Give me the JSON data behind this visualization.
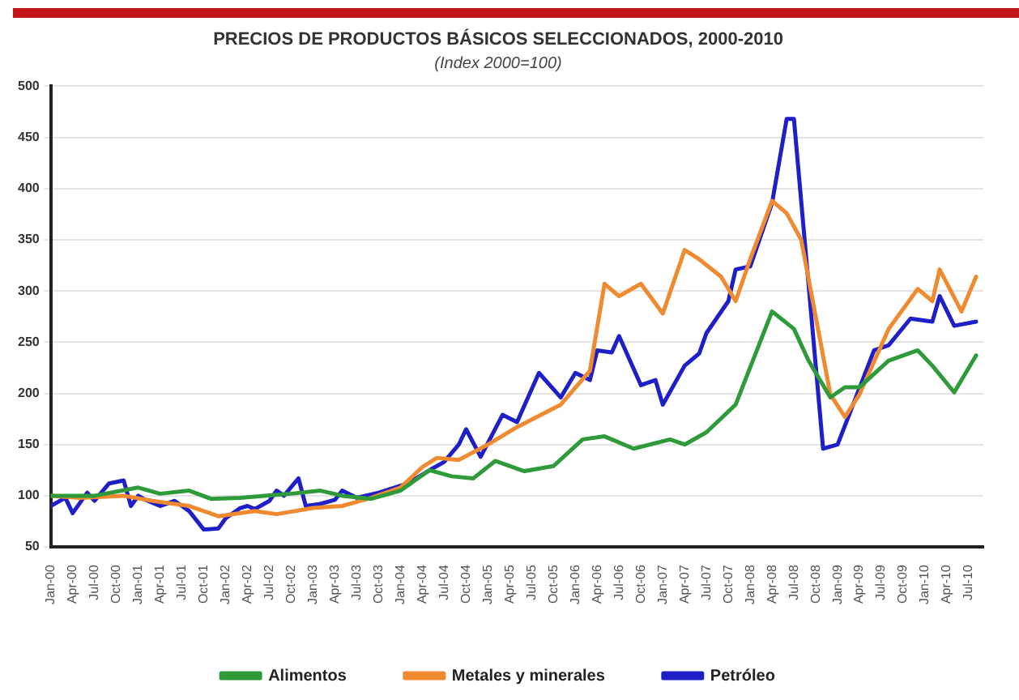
{
  "chart_data": {
    "type": "line",
    "title": "PRECIOS DE PRODUCTOS BÁSICOS SELECCIONADOS, 2000-2010",
    "subtitle": "(Index 2000=100)",
    "xlim": [
      "2000-01",
      "2010-09"
    ],
    "xticks": [
      {
        "value": "2000-01",
        "label": "Jan-00"
      },
      {
        "value": "2000-04",
        "label": "Apr-00"
      },
      {
        "value": "2000-07",
        "label": "Jul-00"
      },
      {
        "value": "2000-10",
        "label": "Oct-00"
      },
      {
        "value": "2001-01",
        "label": "Jan-01"
      },
      {
        "value": "2001-04",
        "label": "Apr-01"
      },
      {
        "value": "2001-07",
        "label": "Jul-01"
      },
      {
        "value": "2001-10",
        "label": "Oct-01"
      },
      {
        "value": "2002-01",
        "label": "Jan-02"
      },
      {
        "value": "2002-04",
        "label": "Apr-02"
      },
      {
        "value": "2002-07",
        "label": "Jul-02"
      },
      {
        "value": "2002-10",
        "label": "Oct-02"
      },
      {
        "value": "2003-01",
        "label": "Jan-03"
      },
      {
        "value": "2003-04",
        "label": "Apr-03"
      },
      {
        "value": "2003-07",
        "label": "Jul-03"
      },
      {
        "value": "2003-10",
        "label": "Oct-03"
      },
      {
        "value": "2004-01",
        "label": "Jan-04"
      },
      {
        "value": "2004-04",
        "label": "Apr-04"
      },
      {
        "value": "2004-07",
        "label": "Jul-04"
      },
      {
        "value": "2004-10",
        "label": "Oct-04"
      },
      {
        "value": "2005-01",
        "label": "Jan-05"
      },
      {
        "value": "2005-04",
        "label": "Apr-05"
      },
      {
        "value": "2005-07",
        "label": "Jul-05"
      },
      {
        "value": "2005-10",
        "label": "Oct-05"
      },
      {
        "value": "2006-01",
        "label": "Jan-06"
      },
      {
        "value": "2006-04",
        "label": "Apr-06"
      },
      {
        "value": "2006-07",
        "label": "Jul-06"
      },
      {
        "value": "2006-10",
        "label": "Oct-06"
      },
      {
        "value": "2007-01",
        "label": "Jan-07"
      },
      {
        "value": "2007-04",
        "label": "Apr-07"
      },
      {
        "value": "2007-07",
        "label": "Jul-07"
      },
      {
        "value": "2007-10",
        "label": "Oct-07"
      },
      {
        "value": "2008-01",
        "label": "Jan-08"
      },
      {
        "value": "2008-04",
        "label": "Apr-08"
      },
      {
        "value": "2008-07",
        "label": "Jul-08"
      },
      {
        "value": "2008-10",
        "label": "Oct-08"
      },
      {
        "value": "2009-01",
        "label": "Jan-09"
      },
      {
        "value": "2009-04",
        "label": "Apr-09"
      },
      {
        "value": "2009-07",
        "label": "Jul-09"
      },
      {
        "value": "2009-10",
        "label": "Oct-09"
      },
      {
        "value": "2010-01",
        "label": "Jan-10"
      },
      {
        "value": "2010-04",
        "label": "Apr-10"
      },
      {
        "value": "2010-07",
        "label": "Jul-10"
      }
    ],
    "ylim": [
      50,
      500
    ],
    "yticks": [
      50,
      100,
      150,
      200,
      250,
      300,
      350,
      400,
      450,
      500
    ],
    "grid": "y",
    "legend": "bottom",
    "marker": "none",
    "line_style": "solid",
    "series": [
      {
        "name": "Alimentos",
        "color": "#2e9a3a",
        "x": [
          "2000-01",
          "2000-07",
          "2001-01",
          "2001-04",
          "2001-08",
          "2001-11",
          "2002-03",
          "2002-10",
          "2003-02",
          "2003-05",
          "2003-09",
          "2004-01",
          "2004-05",
          "2004-08",
          "2004-11",
          "2005-02",
          "2005-06",
          "2005-10",
          "2006-02",
          "2006-05",
          "2006-09",
          "2007-02",
          "2007-04",
          "2007-07",
          "2007-11",
          "2008-04",
          "2008-07",
          "2008-09",
          "2008-12",
          "2009-02",
          "2009-04",
          "2009-08",
          "2009-12",
          "2010-02",
          "2010-05",
          "2010-08"
        ],
        "values": [
          100,
          100,
          108,
          102,
          105,
          97,
          98,
          102,
          105,
          100,
          97,
          105,
          125,
          119,
          117,
          134,
          124,
          129,
          155,
          158,
          146,
          155,
          150,
          162,
          189,
          280,
          263,
          232,
          196,
          206,
          206,
          232,
          242,
          227,
          201,
          237
        ]
      },
      {
        "name": "Metales y minerales",
        "color": "#f08a30",
        "x": [
          "2000-01",
          "2000-05",
          "2000-11",
          "2001-03",
          "2001-08",
          "2001-12",
          "2002-05",
          "2002-08",
          "2003-01",
          "2003-05",
          "2003-09",
          "2004-01",
          "2004-04",
          "2004-06",
          "2004-09",
          "2005-01",
          "2005-05",
          "2005-11",
          "2006-03",
          "2006-05",
          "2006-07",
          "2006-10",
          "2007-01",
          "2007-04",
          "2007-06",
          "2007-09",
          "2007-11",
          "2008-01",
          "2008-04",
          "2008-06",
          "2008-08",
          "2008-12",
          "2009-02",
          "2009-04",
          "2009-08",
          "2009-12",
          "2010-02",
          "2010-03",
          "2010-06",
          "2010-08"
        ],
        "values": [
          100,
          98,
          100,
          95,
          90,
          80,
          85,
          82,
          88,
          90,
          98,
          108,
          128,
          137,
          135,
          150,
          167,
          189,
          222,
          307,
          295,
          307,
          278,
          340,
          331,
          314,
          290,
          331,
          388,
          376,
          350,
          199,
          177,
          199,
          263,
          302,
          290,
          321,
          280,
          314
        ]
      },
      {
        "name": "Petróleo",
        "color": "#1f1fc8",
        "x": [
          "2000-01",
          "2000-03",
          "2000-04",
          "2000-06",
          "2000-07",
          "2000-09",
          "2000-11",
          "2000-12",
          "2001-01",
          "2001-02",
          "2001-04",
          "2001-06",
          "2001-07",
          "2001-08",
          "2001-10",
          "2001-12",
          "2002-01",
          "2002-03",
          "2002-04",
          "2002-05",
          "2002-07",
          "2002-08",
          "2002-09",
          "2002-11",
          "2002-12",
          "2003-02",
          "2003-04",
          "2003-05",
          "2003-07",
          "2003-10",
          "2004-02",
          "2004-05",
          "2004-07",
          "2004-09",
          "2004-10",
          "2004-12",
          "2005-03",
          "2005-05",
          "2005-08",
          "2005-11",
          "2006-01",
          "2006-03",
          "2006-04",
          "2006-06",
          "2006-07",
          "2006-10",
          "2006-12",
          "2007-01",
          "2007-04",
          "2007-06",
          "2007-07",
          "2007-10",
          "2007-11",
          "2008-01",
          "2008-04",
          "2008-06",
          "2008-07",
          "2008-11",
          "2009-01",
          "2009-06",
          "2009-08",
          "2009-11",
          "2010-02",
          "2010-03",
          "2010-05",
          "2010-08"
        ],
        "values": [
          90,
          98,
          83,
          103,
          95,
          112,
          115,
          90,
          100,
          96,
          90,
          95,
          90,
          85,
          67,
          68,
          78,
          88,
          90,
          87,
          95,
          105,
          100,
          117,
          90,
          92,
          96,
          105,
          98,
          103,
          112,
          125,
          133,
          150,
          165,
          138,
          179,
          172,
          220,
          196,
          220,
          213,
          242,
          240,
          256,
          208,
          213,
          189,
          227,
          239,
          259,
          290,
          321,
          324,
          386,
          468,
          468,
          146,
          150,
          242,
          247,
          273,
          270,
          295,
          266,
          270
        ]
      }
    ]
  }
}
